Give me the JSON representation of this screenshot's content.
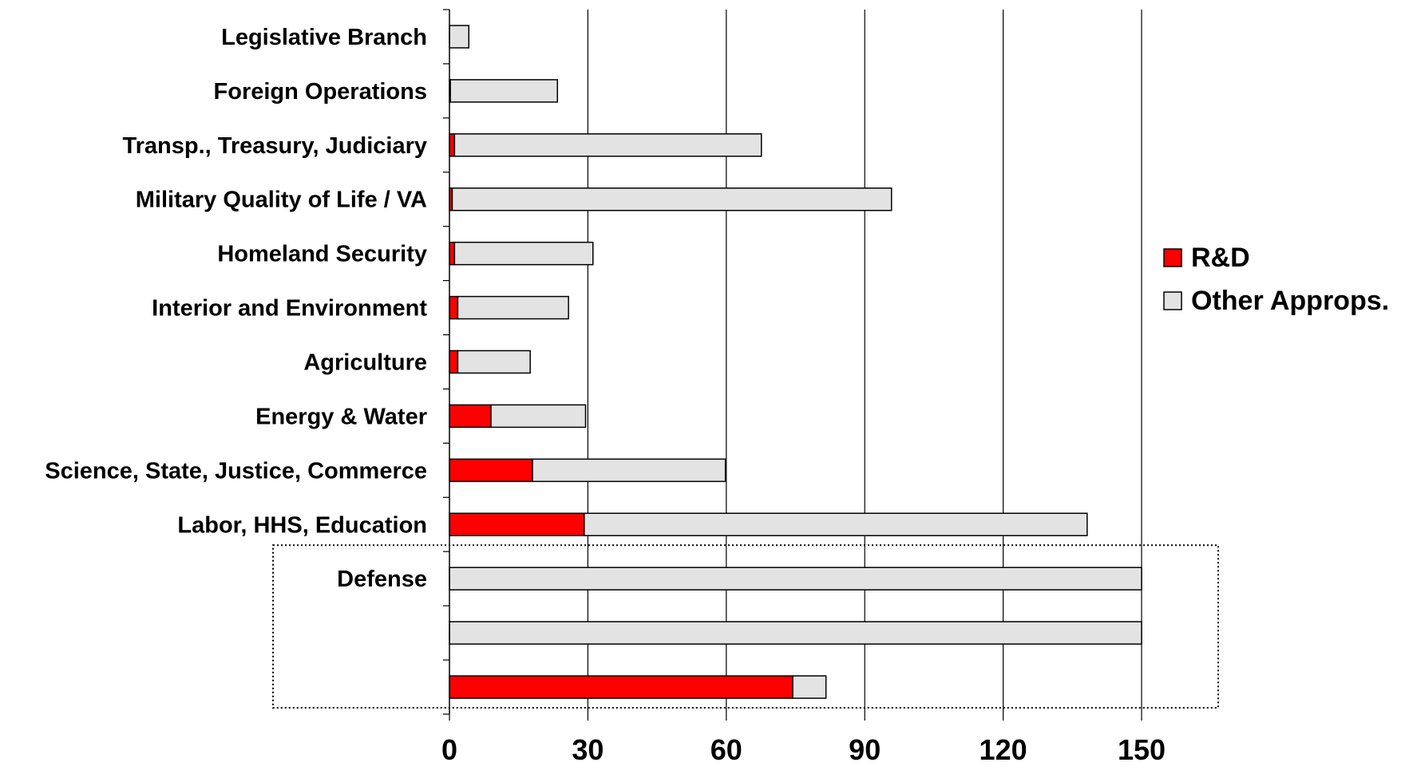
{
  "chart_data": {
    "type": "bar",
    "orientation": "horizontal",
    "stacked": true,
    "title": "",
    "xlabel": "",
    "ylabel": "",
    "xlim": [
      0,
      150
    ],
    "x_ticks": [
      "0",
      "30",
      "60",
      "90",
      "120",
      "150"
    ],
    "grid": true,
    "legend_position": "right",
    "categories": [
      "Legislative Branch",
      "Foreign Operations",
      "Transp., Treasury, Judiciary",
      "Military Quality of Life / VA",
      "Homeland Security",
      "Interior and Environment",
      "Agriculture",
      "Energy & Water",
      "Science, State, Justice, Commerce",
      "Labor, HHS, Education",
      "Defense",
      "",
      ""
    ],
    "series": [
      {
        "name": "R&D",
        "color": "#ff0000",
        "values": [
          0,
          0.2,
          1.1,
          0.6,
          1.1,
          1.8,
          1.8,
          9.0,
          18.0,
          29.2,
          0,
          0,
          74.4
        ]
      },
      {
        "name": "Other Approps.",
        "color": "#e3e3e3",
        "values": [
          4.2,
          23.2,
          66.5,
          95.2,
          30.0,
          24.0,
          15.7,
          20.5,
          41.8,
          109.0,
          150,
          150,
          7.2
        ]
      }
    ],
    "highlight_box": {
      "label": "Defense",
      "rows": [
        10,
        11,
        12
      ],
      "style": "dotted"
    }
  }
}
